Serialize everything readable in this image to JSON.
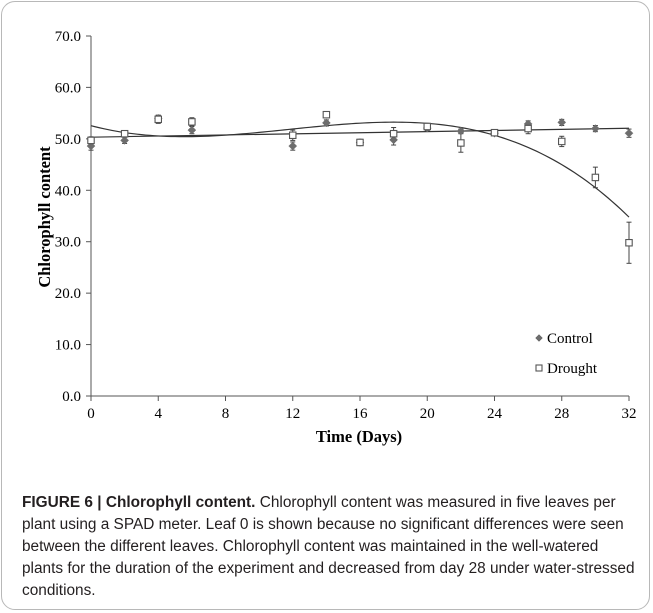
{
  "chart_data": {
    "type": "scatter",
    "xlabel": "Time (Days)",
    "ylabel": "Chlorophyll content",
    "xlim": [
      0,
      32
    ],
    "ylim": [
      0,
      70
    ],
    "x_ticks": [
      0,
      4,
      8,
      12,
      16,
      20,
      24,
      28,
      32
    ],
    "x_tick_labels": [
      "0",
      "4",
      "8",
      "12",
      "16",
      "20",
      "24",
      "28",
      "32"
    ],
    "y_ticks": [
      0,
      10,
      20,
      30,
      40,
      50,
      60,
      70
    ],
    "y_tick_labels": [
      "0.0",
      "10.0",
      "20.0",
      "30.0",
      "40.0",
      "50.0",
      "60.0",
      "70.0"
    ],
    "grid": false,
    "legend_position": "bottom-right",
    "series": [
      {
        "name": "Control",
        "marker": "diamond-filled",
        "color": "#6d6d6d",
        "trendline": "linear",
        "points": [
          {
            "x": 0,
            "y": 48.6,
            "err": 0.8
          },
          {
            "x": 2,
            "y": 49.7,
            "err": 0.6
          },
          {
            "x": 4,
            "y": 54.0,
            "err": 0.6
          },
          {
            "x": 6,
            "y": 51.7,
            "err": 0.7
          },
          {
            "x": 12,
            "y": 48.6,
            "err": 0.8
          },
          {
            "x": 14,
            "y": 53.1,
            "err": 0.6
          },
          {
            "x": 16,
            "y": 49.3,
            "err": 0.6
          },
          {
            "x": 18,
            "y": 49.8,
            "err": 1.0
          },
          {
            "x": 20,
            "y": 52.1,
            "err": 0.5
          },
          {
            "x": 22,
            "y": 51.5,
            "err": 0.4
          },
          {
            "x": 24,
            "y": 51.1,
            "err": 0.4
          },
          {
            "x": 26,
            "y": 52.9,
            "err": 0.6
          },
          {
            "x": 28,
            "y": 53.2,
            "err": 0.6
          },
          {
            "x": 30,
            "y": 52.0,
            "err": 0.6
          },
          {
            "x": 32,
            "y": 51.1,
            "err": 0.8
          }
        ]
      },
      {
        "name": "Drought",
        "marker": "square-open",
        "color": "#555555",
        "trendline": "polynomial",
        "points": [
          {
            "x": 0,
            "y": 49.7,
            "err": 0.7
          },
          {
            "x": 2,
            "y": 51.0,
            "err": 0.6
          },
          {
            "x": 4,
            "y": 53.8,
            "err": 0.8
          },
          {
            "x": 6,
            "y": 53.3,
            "err": 0.8
          },
          {
            "x": 12,
            "y": 50.7,
            "err": 1.0
          },
          {
            "x": 14,
            "y": 54.7,
            "err": 0.6
          },
          {
            "x": 16,
            "y": 49.3,
            "err": 0.6
          },
          {
            "x": 18,
            "y": 51.0,
            "err": 1.2
          },
          {
            "x": 20,
            "y": 52.4,
            "err": 0.6
          },
          {
            "x": 22,
            "y": 49.2,
            "err": 1.8
          },
          {
            "x": 24,
            "y": 51.2,
            "err": 0.4
          },
          {
            "x": 26,
            "y": 52.0,
            "err": 1.0
          },
          {
            "x": 28,
            "y": 49.5,
            "err": 1.0
          },
          {
            "x": 30,
            "y": 42.5,
            "err": 2.0
          },
          {
            "x": 32,
            "y": 29.8,
            "err": 4.0
          }
        ]
      }
    ]
  },
  "caption": {
    "label": "FIGURE 6 | Chlorophyll content.",
    "text": " Chlorophyll content was measured in five leaves per plant using a SPAD meter. Leaf 0 is shown because no significant differences were seen between the different leaves. Chlorophyll content was maintained in the well-watered plants for the duration of the experiment and decreased from day 28 under water-stressed conditions."
  }
}
